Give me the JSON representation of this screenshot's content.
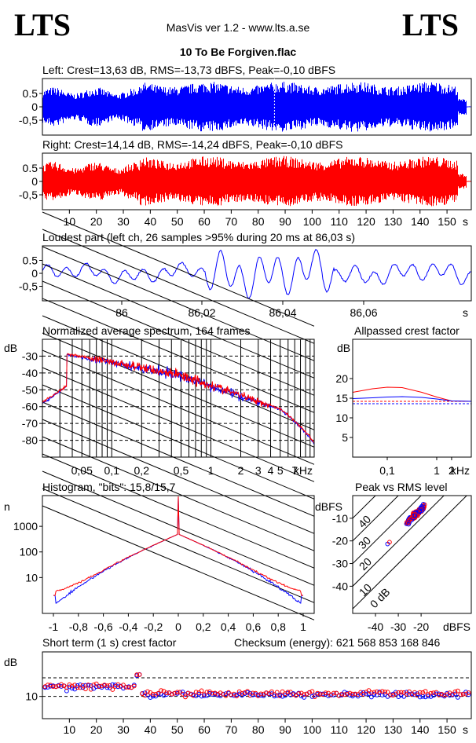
{
  "header": {
    "logo_left": "LTS",
    "logo_right": "LTS",
    "app_title": "MasVis ver 1.2 - www.lts.a.se",
    "file_name": "10 To Be Forgiven.flac"
  },
  "colors": {
    "left": "#0000ff",
    "right": "#ff0000",
    "axis": "#000000"
  },
  "chart_data": [
    {
      "id": "left_wave",
      "type": "line",
      "title": "Left: Crest=13,63 dB, RMS=-13,73 dBFS, Peak=-0,10 dBFS",
      "ytick_labels": [
        "0.5",
        "0",
        "-0,5"
      ],
      "ylim": [
        -1,
        1
      ],
      "xlim": [
        0,
        159
      ],
      "marker_at_s": 86.03
    },
    {
      "id": "right_wave",
      "type": "line",
      "title": "Right: Crest=14,14 dB, RMS=-14,24 dBFS, Peak=-0,10 dBFS",
      "ytick_labels": [
        "0.5",
        "0",
        "-0,5"
      ],
      "xtick_labels": [
        "10",
        "20",
        "30",
        "40",
        "50",
        "60",
        "70",
        "80",
        "90",
        "100",
        "110",
        "120",
        "130",
        "140",
        "150"
      ],
      "xunit": "s",
      "ylim": [
        -1,
        1
      ],
      "xlim": [
        0,
        159
      ]
    },
    {
      "id": "loudest",
      "type": "line",
      "title": "Loudest part (left  ch, 26 samples >95% during 20 ms at 86,03 s)",
      "ytick_labels": [
        "0.5",
        "0",
        "-0,5"
      ],
      "xtick_labels": [
        "86",
        "86,02",
        "86,04",
        "86,06"
      ],
      "xunit": "s"
    },
    {
      "id": "spectrum",
      "type": "line",
      "title": "Normalized average spectrum, 164 frames",
      "ylabel": "dB",
      "ytick_labels": [
        "-30",
        "-40",
        "-50",
        "-60",
        "-70",
        "-80"
      ],
      "xtick_labels": [
        "0,05",
        "0,1",
        "0,2",
        "0,5",
        "1",
        "2",
        "3",
        "4",
        "5",
        "7"
      ],
      "xunit": "kHz",
      "ylim": [
        -90,
        -20
      ]
    },
    {
      "id": "allpass",
      "type": "line",
      "title": "Allpassed crest factor",
      "ylabel": "dB",
      "ytick_labels": [
        "20",
        "15",
        "10",
        "5"
      ],
      "xtick_labels": [
        "0,1",
        "1",
        "2"
      ],
      "xunit": "kHz",
      "series": [
        {
          "values": [
            16.5,
            17.4,
            17.8,
            17.7,
            16.5,
            15.3,
            14.3,
            14.2
          ]
        },
        {
          "values": [
            14.9,
            15.1,
            15.3,
            15.4,
            15.2,
            14.8,
            14.3,
            14.2
          ]
        }
      ],
      "reference_lines": [
        14.2,
        13.6
      ]
    },
    {
      "id": "histogram",
      "type": "line",
      "title": "Histogram, \"bits\": 15,8/15,7",
      "ylabel": "n",
      "ytick_labels": [
        "1000",
        "100",
        "10"
      ],
      "xtick_labels": [
        "-1",
        "-0,8",
        "-0,6",
        "-0,4",
        "-0,2",
        "0",
        "0,2",
        "0,4",
        "0,6",
        "0,8",
        "1"
      ]
    },
    {
      "id": "peak_vs_rms",
      "type": "scatter",
      "title": "Peak vs RMS level",
      "ylabel": "dBFS",
      "ytick_labels": [
        "-10",
        "-20",
        "-30",
        "-40"
      ],
      "xtick_labels": [
        "-40",
        "-30",
        "-20"
      ],
      "xunit": "dBFS",
      "diagonal_labels": [
        "40",
        "30",
        "20",
        "10",
        "0 dB"
      ]
    },
    {
      "id": "crest_short",
      "type": "scatter",
      "title": "Short term (1 s) crest factor",
      "checksum_text": "Checksum (energy):   621 568 853 168 846",
      "ylabel": "dB",
      "ytick_labels": [
        "10"
      ],
      "xtick_labels": [
        "10",
        "20",
        "30",
        "40",
        "50",
        "60",
        "70",
        "80",
        "90",
        "100",
        "110",
        "120",
        "130",
        "140",
        "150"
      ],
      "xunit": "s"
    }
  ]
}
